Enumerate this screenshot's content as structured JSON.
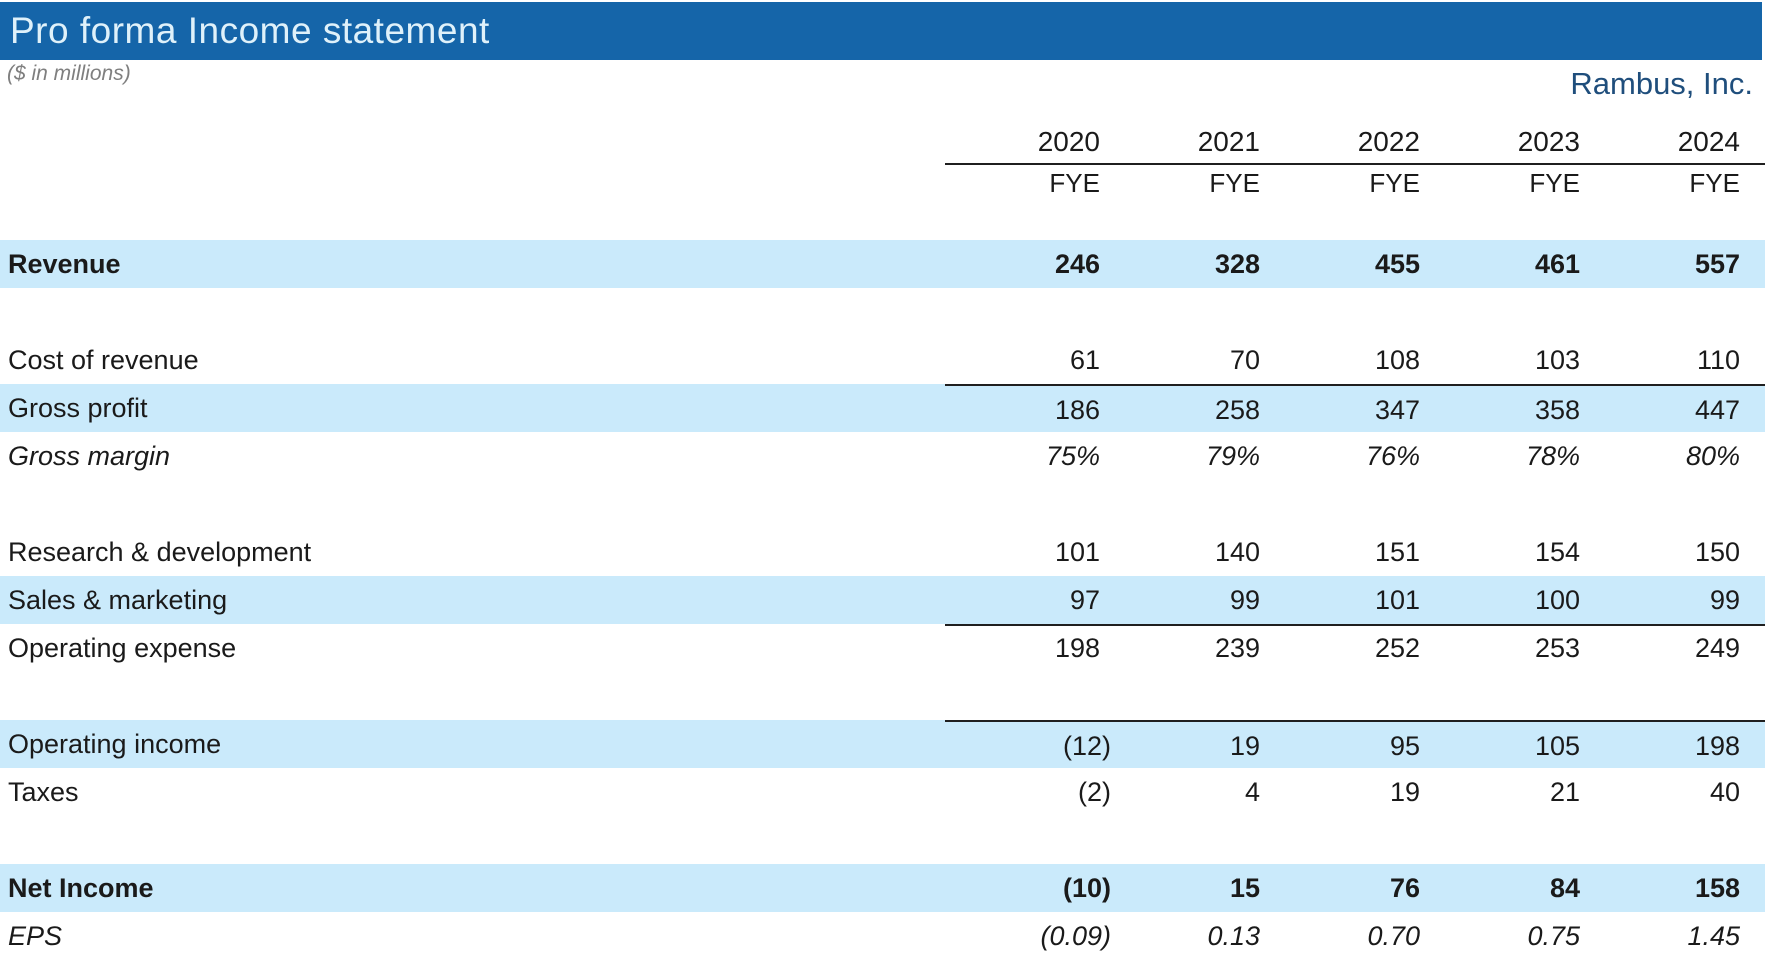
{
  "header": {
    "title": "Pro forma Income statement",
    "subtitle": "($ in millions)",
    "company": "Rambus, Inc."
  },
  "colors": {
    "header_bar": "#1565A9",
    "band_row": "#CAEAFB",
    "company_text": "#1F4E7C",
    "title_text": "#DFF1FA",
    "subtitle_text": "#7F7F7F",
    "rule_line": "#1F1F1F"
  },
  "table": {
    "columns": [
      "2020",
      "2021",
      "2022",
      "2023",
      "2024"
    ],
    "column_subheader": "FYE",
    "rows": [
      {
        "label": "Revenue",
        "values": [
          "246",
          "328",
          "455",
          "461",
          "557"
        ],
        "band": true,
        "bold": true
      },
      {
        "spacer": true
      },
      {
        "label": "Cost of revenue",
        "values": [
          "61",
          "70",
          "108",
          "103",
          "110"
        ]
      },
      {
        "label": "Gross profit",
        "values": [
          "186",
          "258",
          "347",
          "358",
          "447"
        ],
        "band": true,
        "line_top": true
      },
      {
        "label": "Gross margin",
        "values": [
          "75%",
          "79%",
          "76%",
          "78%",
          "80%"
        ],
        "italic": true
      },
      {
        "spacer": true
      },
      {
        "label": "Research & development",
        "values": [
          "101",
          "140",
          "151",
          "154",
          "150"
        ]
      },
      {
        "label": "Sales & marketing",
        "values": [
          "97",
          "99",
          "101",
          "100",
          "99"
        ],
        "band": true,
        "line_bottom": true
      },
      {
        "label": "Operating expense",
        "values": [
          "198",
          "239",
          "252",
          "253",
          "249"
        ]
      },
      {
        "spacer": true
      },
      {
        "label": "Operating income",
        "values": [
          "(12)",
          "19",
          "95",
          "105",
          "198"
        ],
        "band": true,
        "line_top": true
      },
      {
        "label": "Taxes",
        "values": [
          "(2)",
          "4",
          "19",
          "21",
          "40"
        ]
      },
      {
        "spacer": true
      },
      {
        "label": "Net Income",
        "values": [
          "(10)",
          "15",
          "76",
          "84",
          "158"
        ],
        "band": true,
        "bold": true
      },
      {
        "label": "EPS",
        "values": [
          "(0.09)",
          "0.13",
          "0.70",
          "0.75",
          "1.45"
        ],
        "italic": true
      }
    ]
  }
}
